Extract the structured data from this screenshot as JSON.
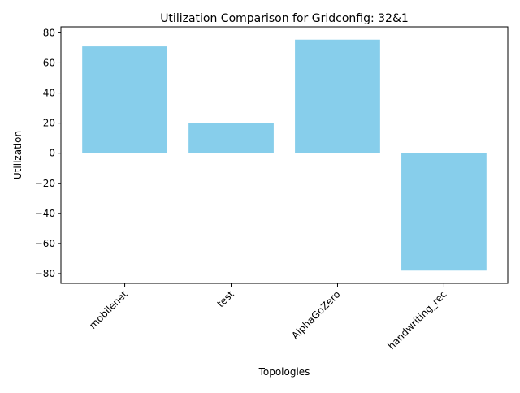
{
  "chart_data": {
    "type": "bar",
    "title": "Utilization Comparison for Gridconfig: 32&1",
    "xlabel": "Topologies",
    "ylabel": "Utilization",
    "categories": [
      "mobilenet",
      "test",
      "AlphaGoZero",
      "handwriting_rec"
    ],
    "values": [
      71,
      20,
      75.5,
      -78
    ],
    "ylim": [
      -86.5,
      84
    ],
    "yticks": [
      -80,
      -60,
      -40,
      -20,
      0,
      20,
      40,
      60,
      80
    ],
    "bar_color": "#87ceeb",
    "grid": false,
    "legend": "none"
  }
}
